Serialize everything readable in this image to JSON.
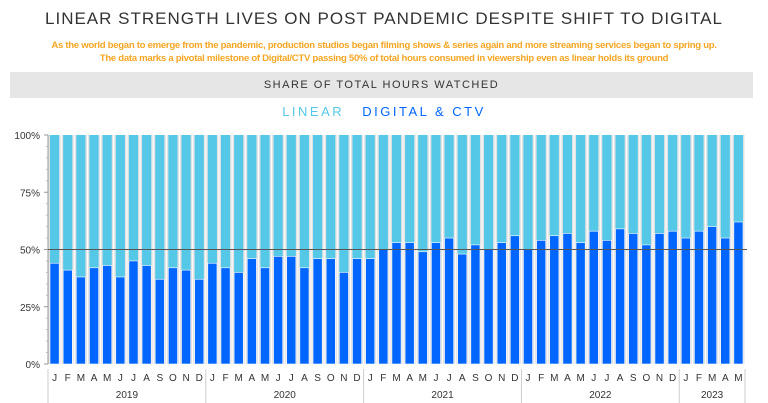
{
  "title": "LINEAR STRENGTH LIVES ON POST PANDEMIC DESPITE SHIFT TO DIGITAL",
  "subtitle_1": "As the world began to emerge from the pandemic, production studios began filming shows & series again and more streaming services began to spring up.",
  "subtitle_2": "The data marks a pivotal milestone of Digital/CTV passing 50% of total hours consumed in viewership even as linear holds its ground",
  "chart_data": {
    "type": "bar",
    "stacked": true,
    "title": "SHARE OF TOTAL HOURS WATCHED",
    "ylim": [
      0,
      100
    ],
    "yticks": [
      "0%",
      "25%",
      "50%",
      "75%",
      "100%"
    ],
    "reference_line": 50,
    "years": [
      {
        "label": "2019",
        "months": 12
      },
      {
        "label": "2020",
        "months": 12
      },
      {
        "label": "2021",
        "months": 12
      },
      {
        "label": "2022",
        "months": 12
      },
      {
        "label": "2023",
        "months": 5
      }
    ],
    "categories": [
      "J",
      "F",
      "M",
      "A",
      "M",
      "J",
      "J",
      "A",
      "S",
      "O",
      "N",
      "D",
      "J",
      "F",
      "M",
      "A",
      "M",
      "J",
      "J",
      "A",
      "S",
      "O",
      "N",
      "D",
      "J",
      "F",
      "M",
      "A",
      "M",
      "J",
      "J",
      "A",
      "S",
      "O",
      "N",
      "D",
      "J",
      "F",
      "M",
      "A",
      "M",
      "J",
      "J",
      "A",
      "S",
      "O",
      "N",
      "D",
      "J",
      "F",
      "M",
      "A",
      "M"
    ],
    "series": [
      {
        "name": "DIGITAL & CTV",
        "color": "#0066ff",
        "values": [
          44,
          41,
          38,
          42,
          43,
          38,
          45,
          43,
          37,
          42,
          41,
          37,
          44,
          42,
          40,
          46,
          42,
          47,
          47,
          42,
          46,
          46,
          40,
          46,
          46,
          50,
          53,
          53,
          49,
          53,
          55,
          48,
          52,
          50,
          53,
          56,
          50,
          54,
          56,
          57,
          53,
          58,
          54,
          59,
          57,
          52,
          57,
          58,
          55,
          58,
          60,
          55,
          62
        ]
      },
      {
        "name": "LINEAR",
        "color": "#55c8e8",
        "values": [
          56,
          59,
          62,
          58,
          57,
          62,
          55,
          57,
          63,
          58,
          59,
          63,
          56,
          58,
          60,
          54,
          58,
          53,
          53,
          58,
          54,
          54,
          60,
          54,
          54,
          50,
          47,
          47,
          51,
          47,
          45,
          52,
          48,
          50,
          47,
          44,
          50,
          46,
          44,
          43,
          47,
          42,
          46,
          41,
          43,
          48,
          43,
          42,
          45,
          42,
          40,
          45,
          38
        ]
      }
    ]
  }
}
